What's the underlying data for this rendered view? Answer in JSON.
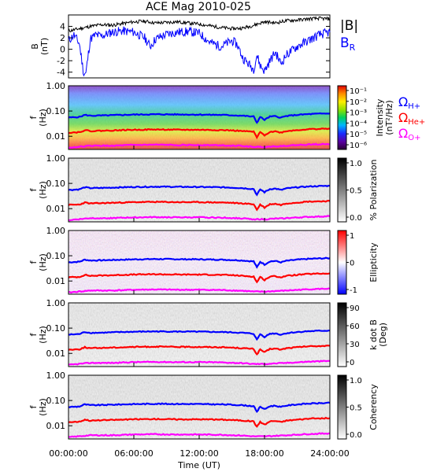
{
  "chart_data": {
    "title": "ACE Mag 2010-025",
    "type": "line",
    "x_axis": {
      "label": "Time (UT)",
      "range_hours": [
        0,
        24
      ],
      "ticks": [
        "00:00:00",
        "06:00:00",
        "12:00:00",
        "18:00:00",
        "24:00:00"
      ]
    },
    "field_panel": {
      "ylabel": "B",
      "yunit": "(nT)",
      "ylim": [
        -5,
        6
      ],
      "yticks": [
        "4",
        "2",
        "0",
        "-2",
        "-4"
      ],
      "legend": [
        "|B|",
        "BR"
      ],
      "series": [
        {
          "name": "|B|",
          "color": "#000000",
          "x": [
            0,
            1,
            2,
            3,
            4,
            5,
            6,
            7,
            8,
            9,
            10,
            11,
            12,
            13,
            14,
            15,
            16,
            17,
            18,
            19,
            20,
            21,
            22,
            23,
            24
          ],
          "y": [
            3.2,
            3.6,
            4.0,
            4.3,
            4.2,
            4.5,
            4.8,
            4.9,
            4.6,
            4.7,
            4.8,
            4.6,
            4.4,
            4.1,
            3.8,
            3.6,
            3.7,
            4.2,
            4.8,
            4.6,
            5.0,
            5.1,
            5.3,
            5.4,
            5.3
          ]
        },
        {
          "name": "BR",
          "color": "#0000ff",
          "x": [
            0,
            0.5,
            1,
            1.4,
            1.6,
            2,
            2.5,
            3,
            4,
            5,
            6,
            7,
            7.5,
            8,
            9,
            10,
            11,
            12,
            13,
            14,
            15,
            15.5,
            16,
            16.5,
            17,
            17.3,
            17.6,
            18,
            18.5,
            19,
            19.5,
            20,
            21,
            22,
            23,
            24
          ],
          "y": [
            1.5,
            2.5,
            1.0,
            -4.3,
            -4.2,
            1.8,
            2.5,
            2.3,
            3.0,
            3.2,
            3.0,
            2.0,
            0.5,
            1.8,
            2.6,
            3.0,
            3.1,
            2.8,
            1.2,
            0.5,
            1.5,
            0.8,
            -1.5,
            -2.5,
            -3.5,
            -1.0,
            -2.8,
            -3.8,
            -2.0,
            -0.5,
            -2.5,
            -1.0,
            0.5,
            1.5,
            2.5,
            3.0
          ]
        }
      ]
    },
    "spectral_panels": [
      {
        "colorbar_label": "Intensity",
        "colorbar_unit": "(nT²/Hz)",
        "colorbar_ticks": [
          "10⁻¹",
          "10⁻²",
          "10⁻³",
          "10⁻⁴",
          "10⁻⁵",
          "10⁻⁶"
        ],
        "colormap": "rainbow",
        "legend": [
          "ΩH+",
          "ΩHe+",
          "ΩO+"
        ]
      },
      {
        "colorbar_label": "% Polarization",
        "colorbar_ticks": [
          "1.0",
          "0.5",
          "0.0"
        ],
        "colormap": "gray"
      },
      {
        "colorbar_label": "Ellipticity",
        "colorbar_ticks": [
          "1",
          "0",
          "-1"
        ],
        "colormap": "bluewhitered"
      },
      {
        "colorbar_label": "k dot B",
        "colorbar_unit": "(Deg)",
        "colorbar_ticks": [
          "90",
          "60",
          "30",
          "0"
        ],
        "colormap": "gray"
      },
      {
        "colorbar_label": "Coherency",
        "colorbar_ticks": [
          "1.0",
          "0.5",
          "0.0"
        ],
        "colormap": "gray"
      }
    ],
    "spectral_axis": {
      "ylabel": "f",
      "yunit": "(Hz)",
      "scale": "log",
      "ylim_hz": [
        0.003,
        1.0
      ],
      "yticks": [
        "1.00",
        "0.10",
        "0.01"
      ]
    },
    "cyclotron_lines": [
      {
        "name": "ΩH+",
        "color": "#0000ff",
        "x": [
          0,
          1,
          1.5,
          2,
          3,
          4,
          6,
          8,
          10,
          12,
          14,
          15,
          16,
          16.5,
          17,
          17.3,
          17.6,
          18,
          18.5,
          19,
          19.5,
          20,
          21,
          22,
          23,
          24
        ],
        "y_hz": [
          0.055,
          0.058,
          0.07,
          0.065,
          0.066,
          0.068,
          0.072,
          0.074,
          0.073,
          0.072,
          0.07,
          0.068,
          0.065,
          0.062,
          0.06,
          0.035,
          0.058,
          0.045,
          0.06,
          0.062,
          0.055,
          0.063,
          0.07,
          0.075,
          0.078,
          0.08
        ]
      },
      {
        "name": "ΩHe+",
        "color": "#ff0000",
        "x": [
          0,
          1,
          1.5,
          2,
          3,
          4,
          6,
          8,
          10,
          12,
          14,
          15,
          16,
          16.5,
          17,
          17.3,
          17.6,
          18,
          18.5,
          19,
          19.5,
          20,
          21,
          22,
          23,
          24
        ],
        "y_hz": [
          0.014,
          0.0145,
          0.0175,
          0.016,
          0.0165,
          0.017,
          0.018,
          0.0185,
          0.018,
          0.018,
          0.0175,
          0.017,
          0.016,
          0.0155,
          0.015,
          0.009,
          0.0145,
          0.011,
          0.015,
          0.0155,
          0.014,
          0.016,
          0.0175,
          0.019,
          0.0195,
          0.02
        ]
      },
      {
        "name": "ΩO+",
        "color": "#ff00ff",
        "x": [
          0,
          2,
          4,
          6,
          8,
          10,
          12,
          14,
          16,
          17,
          18,
          19,
          20,
          22,
          24
        ],
        "y_hz": [
          0.0035,
          0.0042,
          0.0042,
          0.0045,
          0.0046,
          0.0045,
          0.0045,
          0.0044,
          0.0041,
          0.0038,
          0.0038,
          0.004,
          0.0042,
          0.0047,
          0.005
        ]
      }
    ]
  }
}
